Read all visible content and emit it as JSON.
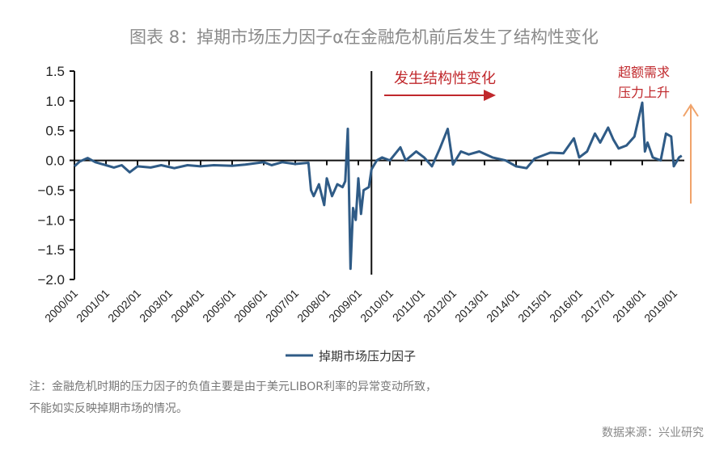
{
  "title": "图表 8：掉期市场压力因子α在金融危机前后发生了结构性变化",
  "notes": [
    "注：金融危机时期的压力因子的负值主要是由于美元LIBOR利率的异常变动所致，",
    "不能如实反映掉期市场的情况。"
  ],
  "source": "数据来源：兴业研究",
  "annotations": {
    "structural_change": "发生结构性变化",
    "demand_line1": "超额需求",
    "demand_line2": "压力上升"
  },
  "colors": {
    "series": "#2f5b86",
    "annotation_text": "#c0282c",
    "red_arrow": "#c0282c",
    "orange_arrow": "#f0a36a",
    "title": "#8a8a8a"
  },
  "chart_data": {
    "type": "line",
    "title": "",
    "xlabel": "",
    "ylabel": "",
    "ylim": [
      -2.0,
      1.5
    ],
    "yticks": [
      "1.5",
      "1.0",
      "0.5",
      "0.0",
      "-0.5",
      "-1.0",
      "-1.5",
      "-2.0"
    ],
    "xticks": [
      "2000/01",
      "2001/01",
      "2002/01",
      "2003/01",
      "2004/01",
      "2005/01",
      "2006/01",
      "2007/01",
      "2008/01",
      "2009/01",
      "2010/01",
      "2011/01",
      "2012/01",
      "2013/01",
      "2014/01",
      "2015/01",
      "2016/01",
      "2017/01",
      "2018/01",
      "2019/01"
    ],
    "grid": false,
    "legend_placement": "bottom",
    "vertical_marker": "2009-06",
    "series": [
      {
        "name": "掉期市场压力因子",
        "points": [
          [
            "2000-01",
            -0.1
          ],
          [
            "2000-03",
            -0.02
          ],
          [
            "2000-06",
            0.04
          ],
          [
            "2000-09",
            -0.03
          ],
          [
            "2001-01",
            -0.08
          ],
          [
            "2001-04",
            -0.12
          ],
          [
            "2001-07",
            -0.08
          ],
          [
            "2001-10",
            -0.2
          ],
          [
            "2002-01",
            -0.1
          ],
          [
            "2002-06",
            -0.12
          ],
          [
            "2002-10",
            -0.08
          ],
          [
            "2003-03",
            -0.13
          ],
          [
            "2003-08",
            -0.08
          ],
          [
            "2004-01",
            -0.1
          ],
          [
            "2004-06",
            -0.08
          ],
          [
            "2005-01",
            -0.09
          ],
          [
            "2005-06",
            -0.07
          ],
          [
            "2006-01",
            -0.03
          ],
          [
            "2006-04",
            -0.08
          ],
          [
            "2006-08",
            -0.03
          ],
          [
            "2007-01",
            -0.06
          ],
          [
            "2007-06",
            -0.04
          ],
          [
            "2007-07",
            -0.5
          ],
          [
            "2007-08",
            -0.6
          ],
          [
            "2007-10",
            -0.4
          ],
          [
            "2007-12",
            -0.75
          ],
          [
            "2008-01",
            -0.3
          ],
          [
            "2008-03",
            -0.6
          ],
          [
            "2008-05",
            -0.4
          ],
          [
            "2008-07",
            -0.45
          ],
          [
            "2008-08",
            -0.35
          ],
          [
            "2008-09",
            0.53
          ],
          [
            "2008-10",
            -1.82
          ],
          [
            "2008-11",
            -0.8
          ],
          [
            "2008-12",
            -1.0
          ],
          [
            "2009-01",
            -0.3
          ],
          [
            "2009-02",
            -0.9
          ],
          [
            "2009-03",
            -0.5
          ],
          [
            "2009-05",
            -0.45
          ],
          [
            "2009-06",
            -0.15
          ],
          [
            "2009-08",
            0.0
          ],
          [
            "2009-10",
            0.05
          ],
          [
            "2010-01",
            0.0
          ],
          [
            "2010-05",
            0.22
          ],
          [
            "2010-07",
            0.0
          ],
          [
            "2010-11",
            0.15
          ],
          [
            "2011-02",
            0.05
          ],
          [
            "2011-05",
            -0.1
          ],
          [
            "2011-08",
            0.2
          ],
          [
            "2011-11",
            0.53
          ],
          [
            "2012-01",
            -0.07
          ],
          [
            "2012-04",
            0.15
          ],
          [
            "2012-07",
            0.1
          ],
          [
            "2012-11",
            0.15
          ],
          [
            "2013-04",
            0.05
          ],
          [
            "2013-09",
            0.0
          ],
          [
            "2014-01",
            -0.1
          ],
          [
            "2014-05",
            -0.13
          ],
          [
            "2014-08",
            0.03
          ],
          [
            "2015-02",
            0.13
          ],
          [
            "2015-07",
            0.12
          ],
          [
            "2015-11",
            0.37
          ],
          [
            "2016-01",
            0.05
          ],
          [
            "2016-04",
            0.15
          ],
          [
            "2016-07",
            0.45
          ],
          [
            "2016-09",
            0.3
          ],
          [
            "2016-12",
            0.55
          ],
          [
            "2017-02",
            0.35
          ],
          [
            "2017-04",
            0.2
          ],
          [
            "2017-07",
            0.25
          ],
          [
            "2017-10",
            0.4
          ],
          [
            "2018-01",
            0.97
          ],
          [
            "2018-02",
            0.15
          ],
          [
            "2018-03",
            0.3
          ],
          [
            "2018-05",
            0.05
          ],
          [
            "2018-08",
            0.0
          ],
          [
            "2018-10",
            0.45
          ],
          [
            "2018-12",
            0.4
          ],
          [
            "2019-01",
            -0.1
          ],
          [
            "2019-03",
            0.05
          ],
          [
            "2019-04",
            0.08
          ]
        ]
      }
    ]
  }
}
